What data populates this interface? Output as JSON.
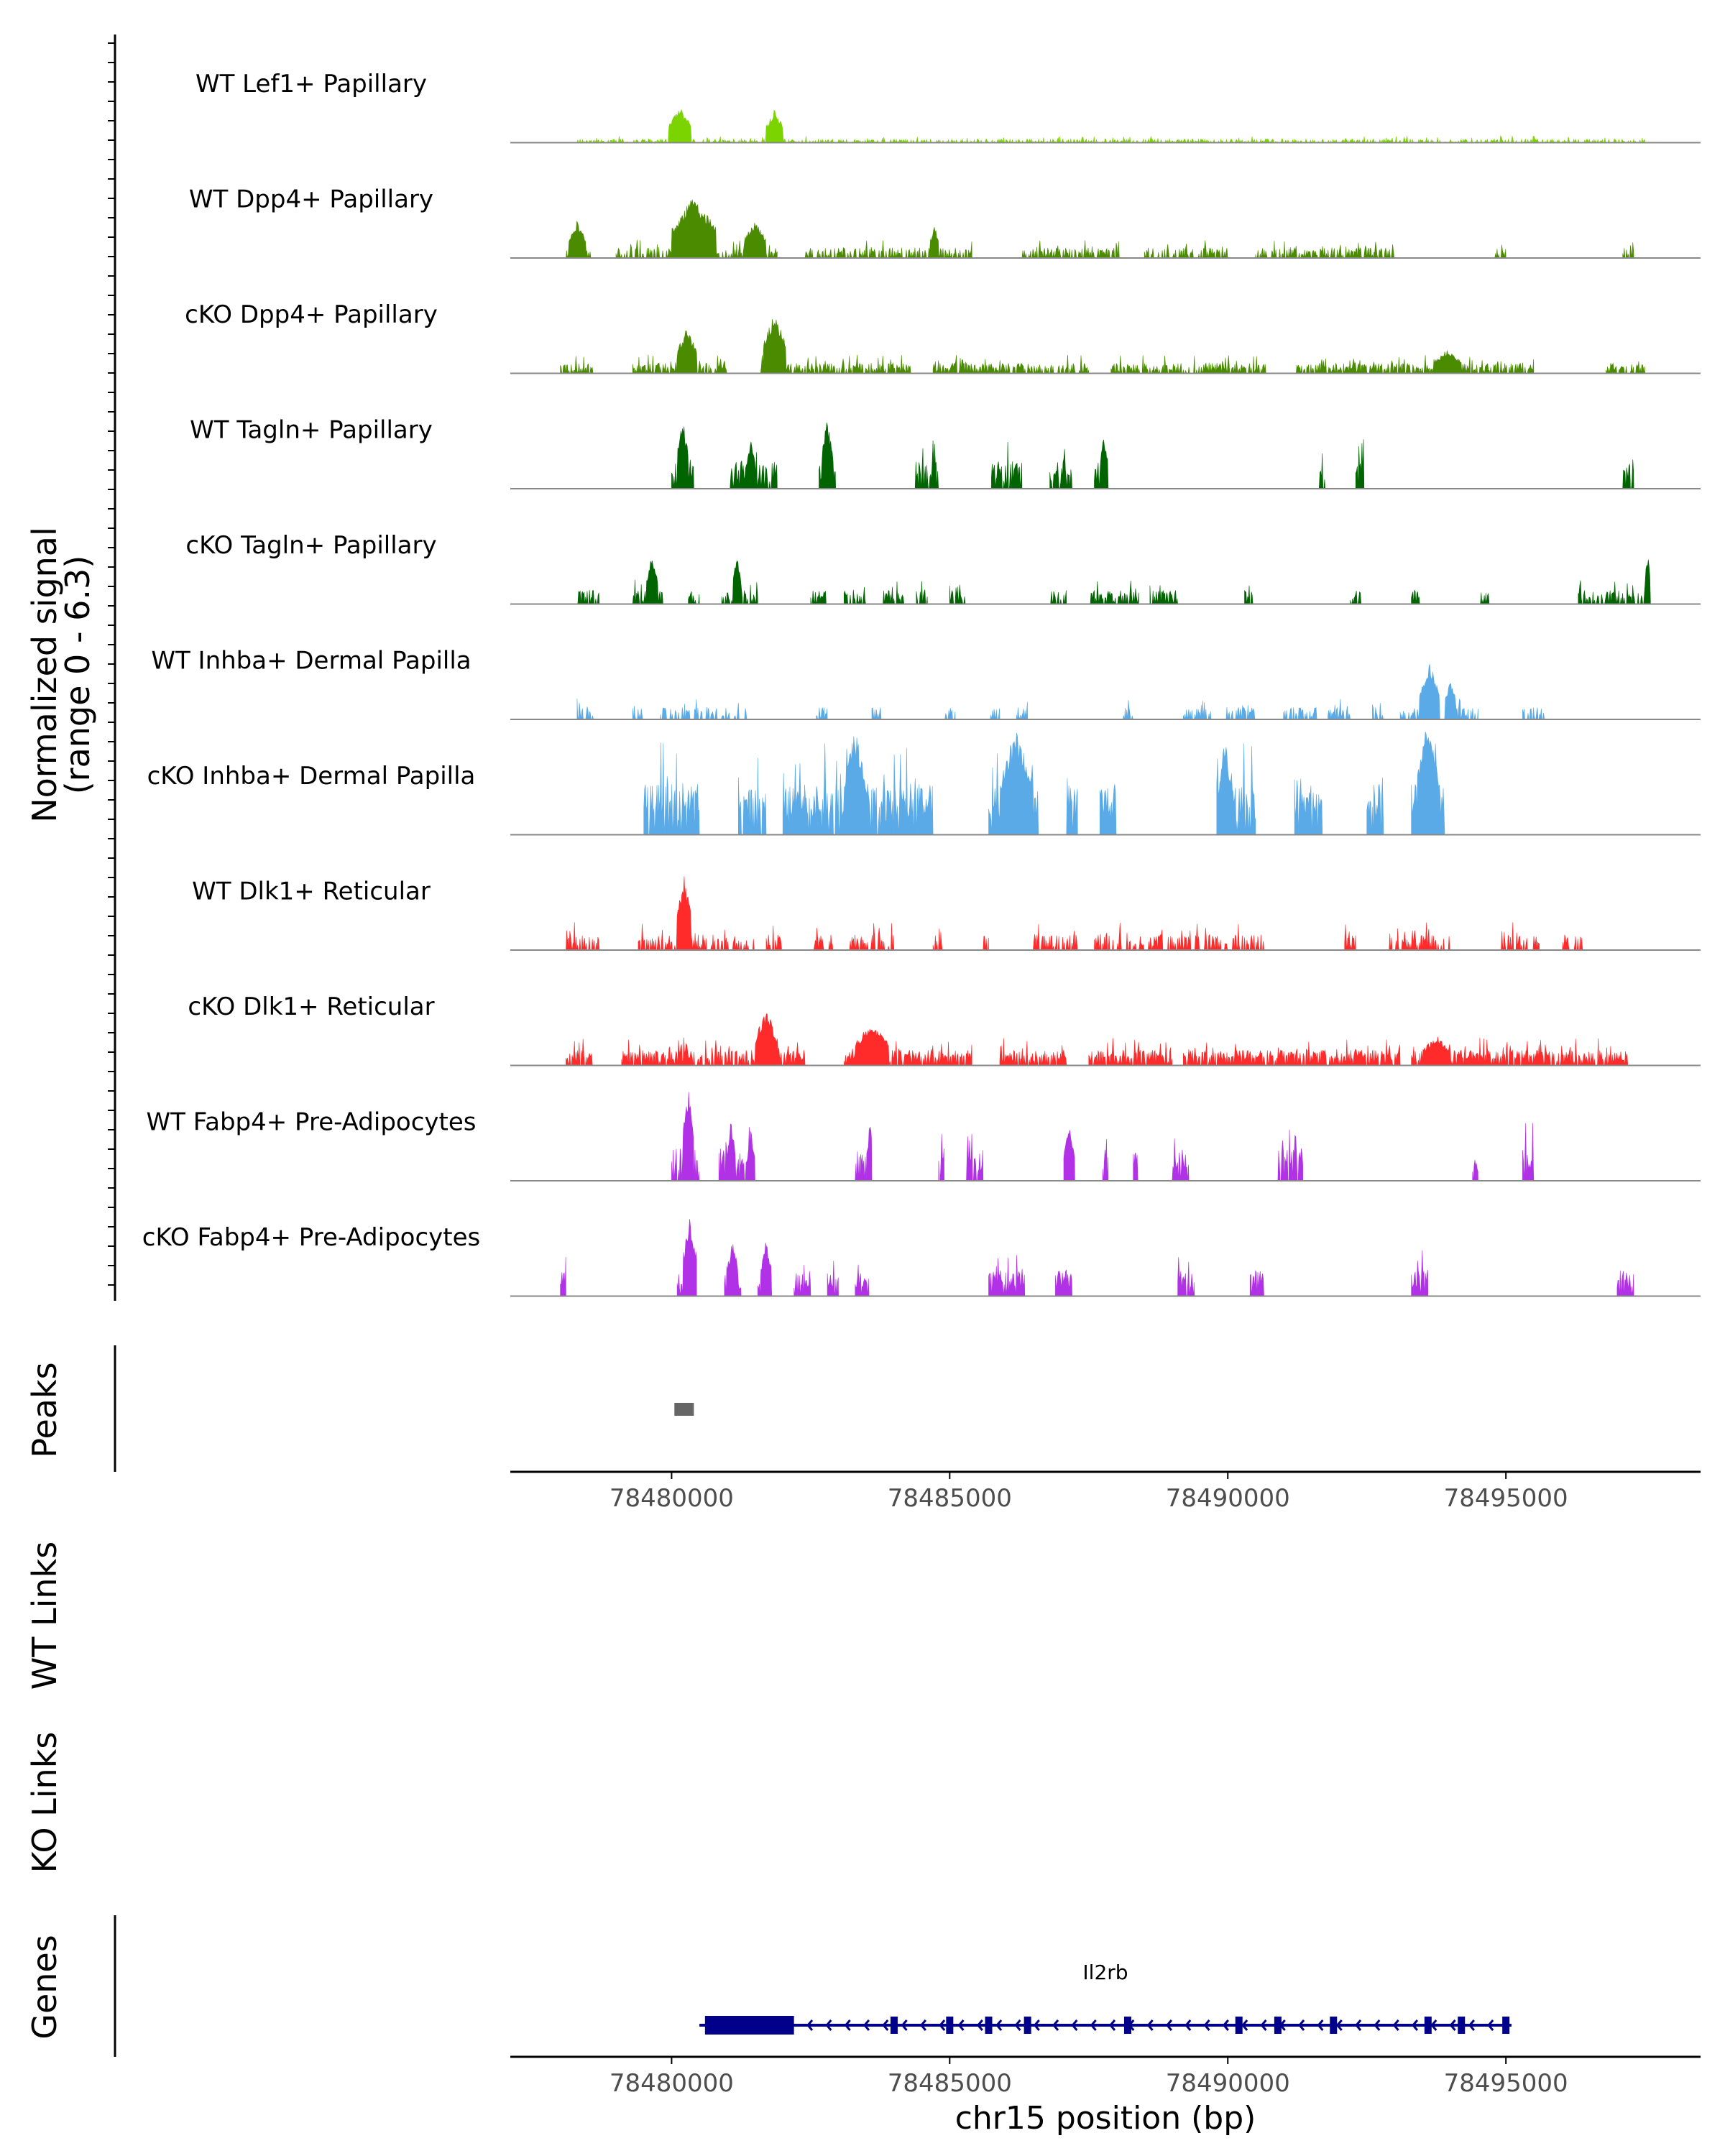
{
  "chart_data": {
    "type": "area",
    "title": "",
    "chromosome": "chr15",
    "xlabel": "chr15 position (bp)",
    "xlim": [
      78477100,
      78498500
    ],
    "xticks": [
      78480000,
      78485000,
      78490000,
      78495000
    ],
    "xtick_labels": [
      "78480000",
      "78485000",
      "78490000",
      "78495000"
    ],
    "ylabel_line1": "Normalized signal",
    "ylabel_line2": "(range 0 - 6.3)",
    "ylim": [
      0,
      6.3
    ],
    "tracks": [
      {
        "name": "WT Lef1+ Papillary",
        "color": "#7bd400",
        "peaks": [
          [
            78479950,
            78480350,
            1.0,
            2.1
          ],
          [
            78481700,
            78482000,
            0.8,
            2.0
          ]
        ],
        "regions": [
          [
            78478300,
            78497500
          ]
        ],
        "density": 0.42,
        "base": 0.22
      },
      {
        "name": "WT Dpp4+ Papillary",
        "color": "#4a8b00",
        "peaks": [
          [
            78478150,
            78478450,
            0.9,
            2.2
          ],
          [
            78480000,
            78480800,
            1.2,
            3.6
          ],
          [
            78481300,
            78481700,
            0.7,
            2.2
          ],
          [
            78484650,
            78484800,
            0.6,
            2.1
          ]
        ],
        "regions": [
          [
            78478100,
            78478550
          ],
          [
            78479000,
            78481900
          ],
          [
            78482400,
            78485400
          ],
          [
            78486300,
            78488100
          ],
          [
            78488500,
            78490000
          ],
          [
            78490500,
            78493000
          ],
          [
            78494800,
            78495000
          ],
          [
            78497100,
            78497300
          ]
        ],
        "density": 0.55,
        "base": 0.6
      },
      {
        "name": "cKO Dpp4+ Papillary",
        "color": "#4a8b00",
        "peaks": [
          [
            78480100,
            78480450,
            0.9,
            2.7
          ],
          [
            78481650,
            78482050,
            1.0,
            3.6
          ],
          [
            78493700,
            78494200,
            0.6,
            1.4
          ]
        ],
        "regions": [
          [
            78478000,
            78478600
          ],
          [
            78479300,
            78481000
          ],
          [
            78481600,
            78484300
          ],
          [
            78484700,
            78487500
          ],
          [
            78487900,
            78490700
          ],
          [
            78491200,
            78495500
          ],
          [
            78496800,
            78497500
          ]
        ],
        "density": 0.65,
        "base": 0.6
      },
      {
        "name": "WT Tagln+ Papillary",
        "color": "#006400",
        "peaks": [
          [
            78480100,
            78480300,
            1.0,
            4.2
          ],
          [
            78481350,
            78481500,
            0.8,
            3.0
          ],
          [
            78482700,
            78482900,
            0.9,
            4.2
          ],
          [
            78487700,
            78487850,
            0.8,
            3.2
          ]
        ],
        "regions": [
          [
            78480000,
            78480400
          ],
          [
            78481050,
            78481900
          ],
          [
            78482650,
            78482950
          ],
          [
            78484350,
            78484800
          ],
          [
            78485750,
            78486300
          ],
          [
            78486800,
            78487200
          ],
          [
            78487600,
            78487850
          ],
          [
            78491600,
            78491750
          ],
          [
            78492300,
            78492450
          ],
          [
            78497100,
            78497300
          ]
        ],
        "density": 0.8,
        "base": 1.6
      },
      {
        "name": "cKO Tagln+ Papillary",
        "color": "#006400",
        "peaks": [
          [
            78479550,
            78479750,
            0.8,
            3.0
          ],
          [
            78481100,
            78481250,
            0.8,
            2.8
          ],
          [
            78497500,
            78497600,
            0.8,
            3.0
          ]
        ],
        "regions": [
          [
            78478300,
            78478700
          ],
          [
            78479300,
            78479850
          ],
          [
            78480300,
            78480500
          ],
          [
            78480900,
            78481550
          ],
          [
            78482500,
            78482800
          ],
          [
            78483100,
            78483500
          ],
          [
            78483800,
            78484200
          ],
          [
            78484400,
            78484600
          ],
          [
            78485000,
            78485300
          ],
          [
            78486800,
            78487100
          ],
          [
            78487500,
            78488400
          ],
          [
            78488600,
            78489100
          ],
          [
            78490300,
            78490450
          ],
          [
            78492200,
            78492400
          ],
          [
            78493300,
            78493450
          ],
          [
            78494500,
            78494700
          ],
          [
            78496300,
            78497600
          ]
        ],
        "density": 0.6,
        "base": 0.8
      },
      {
        "name": "WT Inhba+ Dermal Papilla",
        "color": "#5aaae8",
        "peaks": [
          [
            78493450,
            78493800,
            1.0,
            3.4
          ],
          [
            78493900,
            78494100,
            0.9,
            2.4
          ]
        ],
        "regions": [
          [
            78478300,
            78478600
          ],
          [
            78479300,
            78479500
          ],
          [
            78479800,
            78481350
          ],
          [
            78482600,
            78482800
          ],
          [
            78483600,
            78483800
          ],
          [
            78484900,
            78485100
          ],
          [
            78485700,
            78485900
          ],
          [
            78486200,
            78486400
          ],
          [
            78488100,
            78488300
          ],
          [
            78489200,
            78489700
          ],
          [
            78489900,
            78490500
          ],
          [
            78491000,
            78491600
          ],
          [
            78491800,
            78492200
          ],
          [
            78492600,
            78492800
          ],
          [
            78493100,
            78494500
          ],
          [
            78495300,
            78495700
          ]
        ],
        "density": 0.5,
        "base": 0.7
      },
      {
        "name": "cKO Inhba+ Dermal Papilla",
        "color": "#5aaae8",
        "peaks": [
          [
            78483100,
            78483500,
            1.0,
            6.2
          ],
          [
            78485900,
            78486500,
            1.0,
            6.2
          ],
          [
            78489850,
            78490050,
            1.0,
            6.2
          ],
          [
            78493400,
            78493800,
            1.0,
            7.0
          ]
        ],
        "regions": [
          [
            78479500,
            78480500
          ],
          [
            78481200,
            78481700
          ],
          [
            78482000,
            78484700
          ],
          [
            78485700,
            78486600
          ],
          [
            78487100,
            78487300
          ],
          [
            78487700,
            78488000
          ],
          [
            78489800,
            78490500
          ],
          [
            78491200,
            78491700
          ],
          [
            78492500,
            78492800
          ],
          [
            78493300,
            78493900
          ]
        ],
        "density": 0.85,
        "base": 3.0
      },
      {
        "name": "WT Dlk1+ Reticular",
        "color": "#ff2a2a",
        "peaks": [
          [
            78480100,
            78480350,
            1.0,
            4.4
          ]
        ],
        "regions": [
          [
            78478100,
            78478700
          ],
          [
            78479400,
            78481500
          ],
          [
            78481700,
            78482000
          ],
          [
            78482500,
            78482900
          ],
          [
            78483200,
            78484000
          ],
          [
            78484700,
            78484900
          ],
          [
            78485600,
            78485700
          ],
          [
            78486500,
            78487400
          ],
          [
            78487600,
            78490700
          ],
          [
            78492100,
            78492300
          ],
          [
            78492900,
            78494000
          ],
          [
            78494900,
            78495600
          ],
          [
            78496000,
            78496400
          ]
        ],
        "density": 0.5,
        "base": 0.9
      },
      {
        "name": "cKO Dlk1+ Reticular",
        "color": "#ff2a2a",
        "peaks": [
          [
            78481500,
            78481900,
            1.0,
            3.3
          ],
          [
            78483300,
            78483900,
            0.8,
            2.6
          ],
          [
            78493500,
            78494000,
            0.6,
            1.8
          ]
        ],
        "regions": [
          [
            78478100,
            78478600
          ],
          [
            78479100,
            78482400
          ],
          [
            78483100,
            78485400
          ],
          [
            78485900,
            78487100
          ],
          [
            78487500,
            78489000
          ],
          [
            78489200,
            78493100
          ],
          [
            78493300,
            78497200
          ]
        ],
        "density": 0.75,
        "base": 0.9
      },
      {
        "name": "WT Fabp4+ Pre-Adipocytes",
        "color": "#b132e6",
        "peaks": [
          [
            78480200,
            78480400,
            1.0,
            5.6
          ],
          [
            78481000,
            78481150,
            0.9,
            3.4
          ],
          [
            78481350,
            78481500,
            0.9,
            2.6
          ],
          [
            78483500,
            78483650,
            0.9,
            3.4
          ],
          [
            78487050,
            78487250,
            0.9,
            3.4
          ]
        ],
        "regions": [
          [
            78480000,
            78480500
          ],
          [
            78480850,
            78481500
          ],
          [
            78483300,
            78483600
          ],
          [
            78484800,
            78484900
          ],
          [
            78485300,
            78485600
          ],
          [
            78487050,
            78487250
          ],
          [
            78487750,
            78487850
          ],
          [
            78488300,
            78488400
          ],
          [
            78489000,
            78489300
          ],
          [
            78490900,
            78491350
          ],
          [
            78494400,
            78494500
          ],
          [
            78495300,
            78495500
          ]
        ],
        "density": 0.8,
        "base": 1.9
      },
      {
        "name": "cKO Fabp4+ Pre-Adipocytes",
        "color": "#b132e6",
        "peaks": [
          [
            78480200,
            78480450,
            1.0,
            4.7
          ],
          [
            78481000,
            78481200,
            0.8,
            3.4
          ],
          [
            78481600,
            78481800,
            0.8,
            3.4
          ]
        ],
        "regions": [
          [
            78478000,
            78478100
          ],
          [
            78480100,
            78480450
          ],
          [
            78480950,
            78481250
          ],
          [
            78481550,
            78481800
          ],
          [
            78482200,
            78482500
          ],
          [
            78482800,
            78483000
          ],
          [
            78483300,
            78483550
          ],
          [
            78485700,
            78486350
          ],
          [
            78486900,
            78487200
          ],
          [
            78489100,
            78489400
          ],
          [
            78490400,
            78490650
          ],
          [
            78493300,
            78493600
          ],
          [
            78497000,
            78497300
          ]
        ],
        "density": 0.85,
        "base": 1.5
      }
    ],
    "peaks_panel": {
      "label": "Peaks",
      "intervals": [
        [
          78480050,
          78480400
        ]
      ],
      "color": "#666666"
    },
    "links_panels": [
      {
        "label": "WT Links"
      },
      {
        "label": "KO Links"
      }
    ],
    "genes_panel": {
      "label": "Genes",
      "gene_name": "Il2rb",
      "strand": "-",
      "start": 78480500,
      "end": 78495100,
      "color": "#00008b",
      "utr_block": [
        78480600,
        78482200
      ],
      "exons": [
        78484000,
        78485000,
        78485700,
        78486400,
        78488200,
        78490200,
        78490900,
        78491900,
        78493600,
        78494200,
        78495000
      ]
    }
  }
}
